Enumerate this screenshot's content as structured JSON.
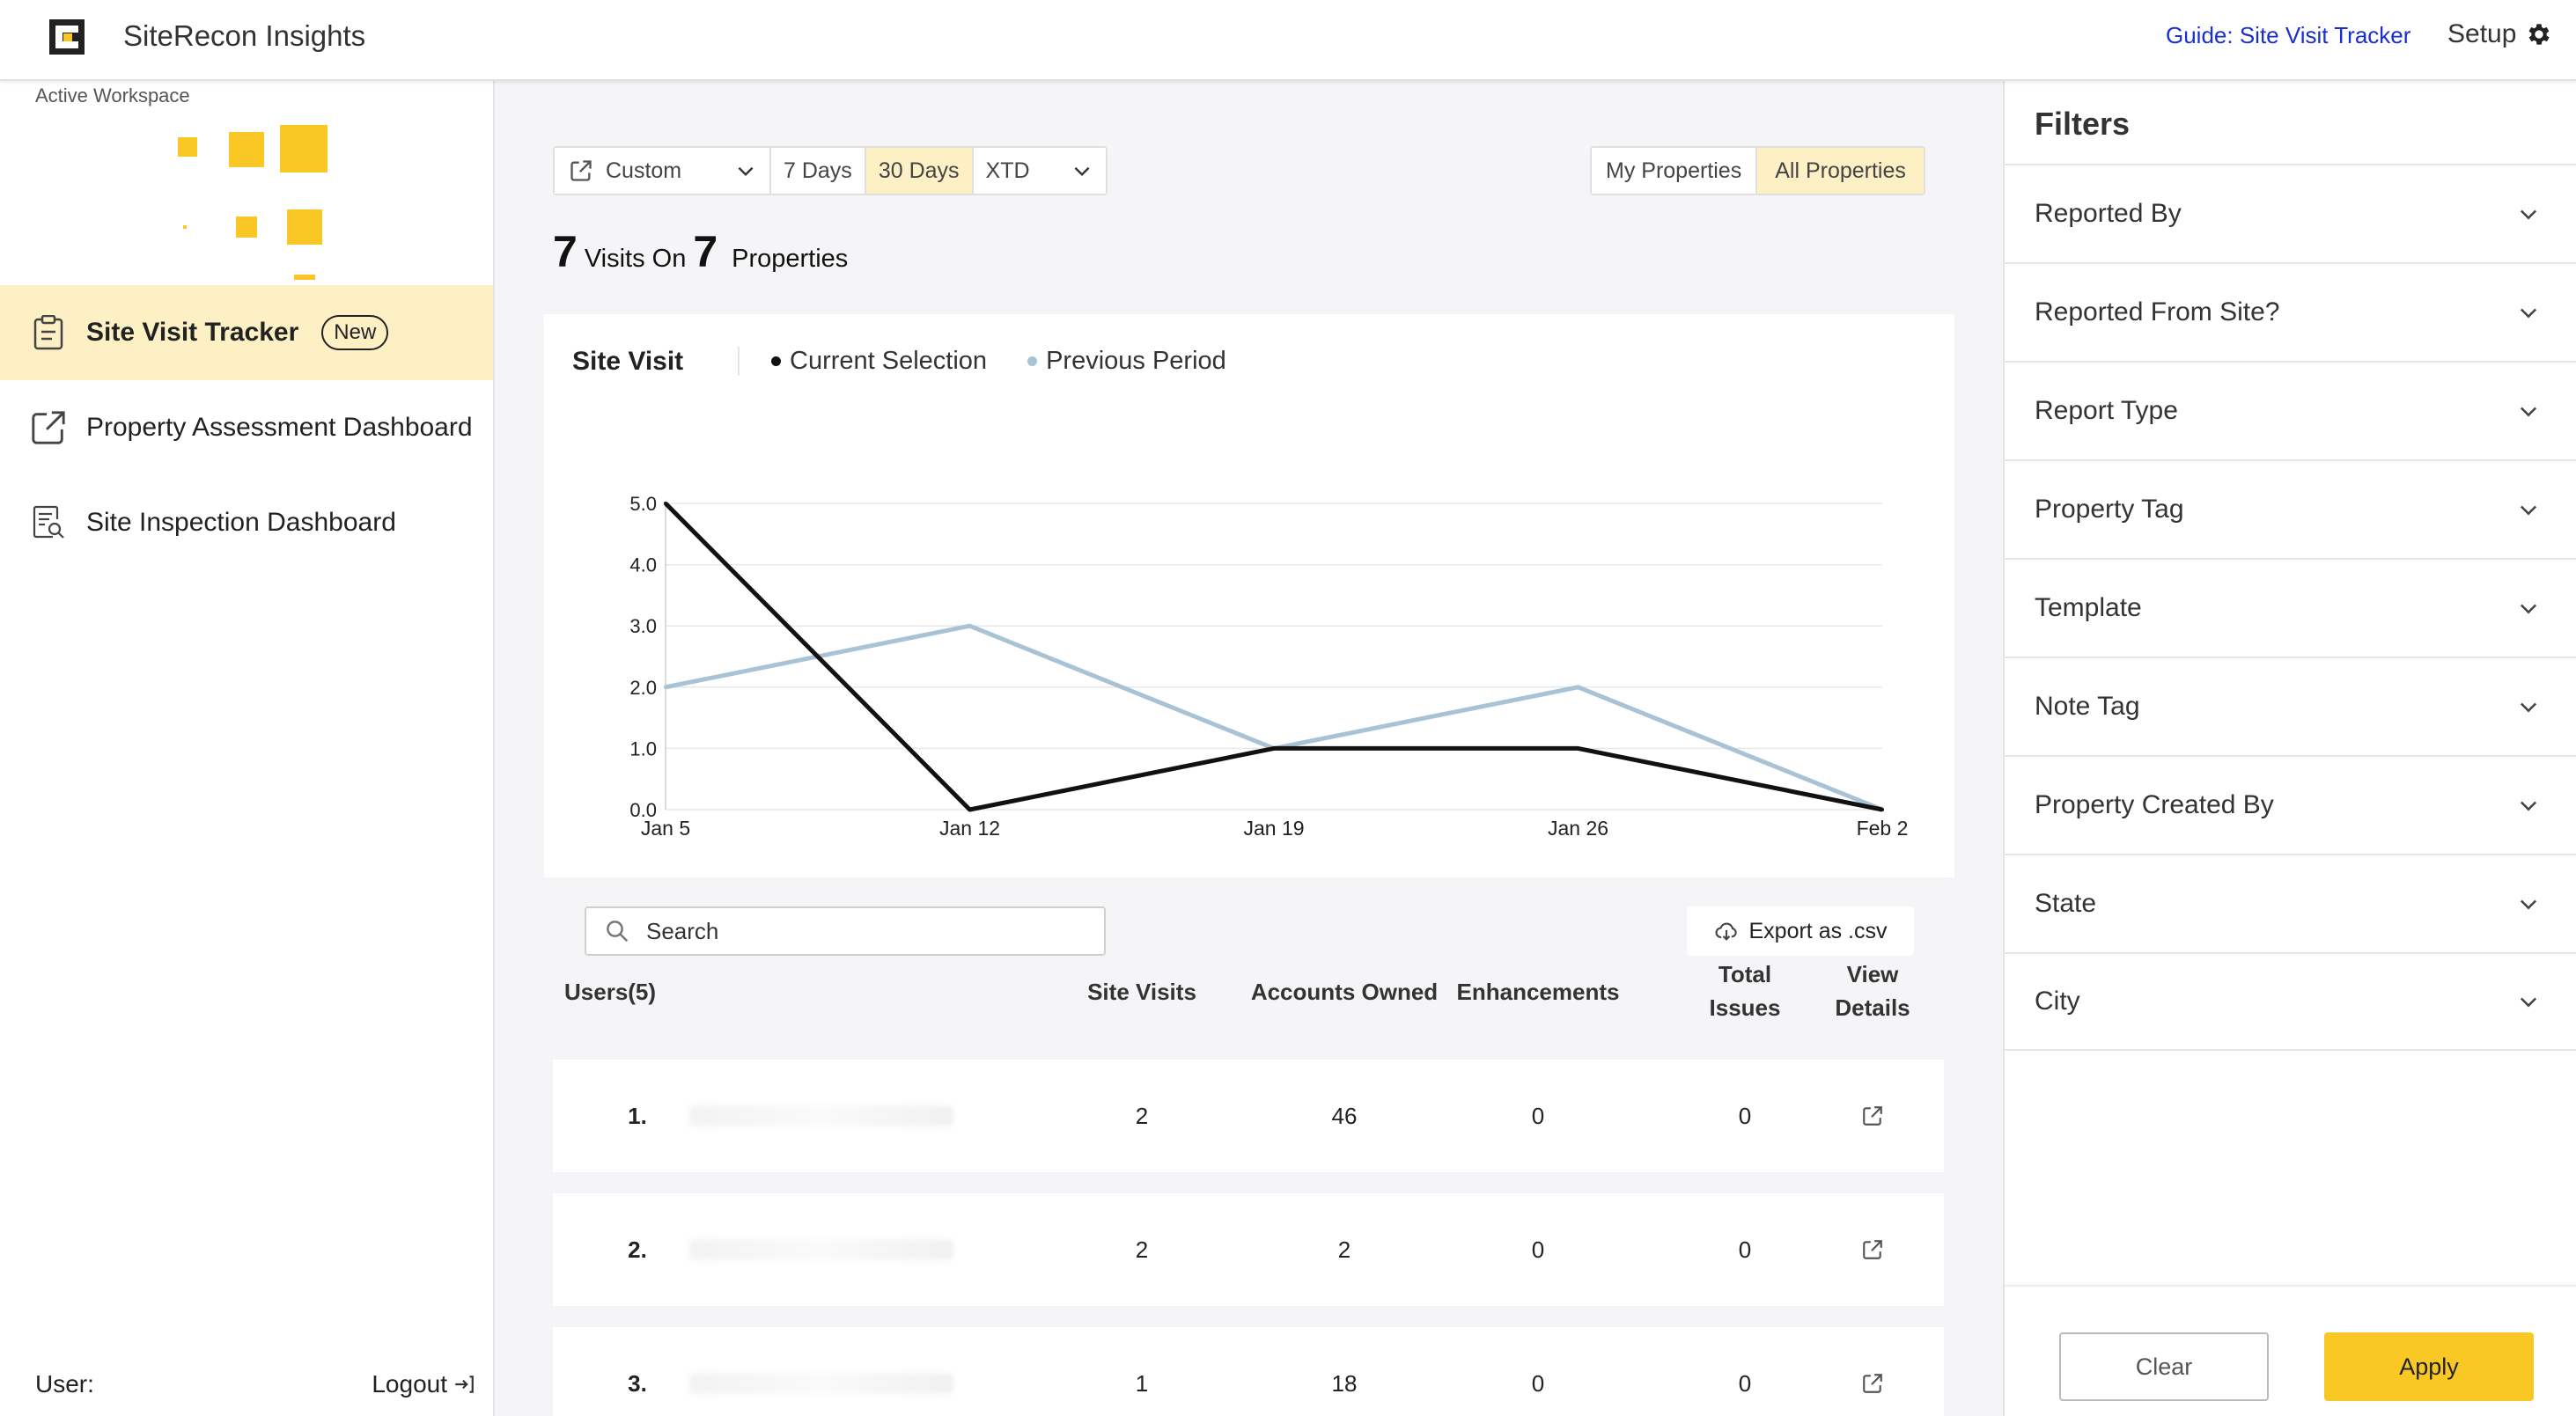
{
  "header": {
    "app_title": "SiteRecon Insights",
    "guide_link": "Guide: Site Visit Tracker",
    "setup_label": "Setup"
  },
  "sidebar": {
    "workspace_label": "Active Workspace",
    "items": [
      {
        "label": "Site Visit Tracker",
        "badge": "New",
        "active": true,
        "icon": "clipboard-icon"
      },
      {
        "label": "Property Assessment Dashboard",
        "icon": "external-link-icon"
      },
      {
        "label": "Site Inspection Dashboard",
        "icon": "report-search-icon"
      }
    ],
    "user_label": "User:",
    "logout_label": "Logout"
  },
  "toolbar": {
    "custom_label": "Custom",
    "range_7": "7 Days",
    "range_30": "30 Days",
    "range_xtd": "XTD",
    "active_range": "30 Days",
    "my_properties": "My Properties",
    "all_properties": "All Properties",
    "active_scope": "All Properties"
  },
  "summary": {
    "visits": "7",
    "visits_label": "Visits On",
    "properties": "7",
    "properties_label": "Properties"
  },
  "chart": {
    "title": "Site Visit",
    "legend_current": "Current Selection",
    "legend_previous": "Previous Period",
    "current_color": "#111111",
    "previous_color": "#a9c3d6"
  },
  "chart_data": {
    "type": "line",
    "title": "Site Visit",
    "x": [
      "Jan 5",
      "Jan 12",
      "Jan 19",
      "Jan 26",
      "Feb 2"
    ],
    "yticks": [
      "0.0",
      "1.0",
      "2.0",
      "3.0",
      "4.0",
      "5.0"
    ],
    "ylim": [
      0,
      5
    ],
    "grid": true,
    "legend_position": "top",
    "series": [
      {
        "name": "Current Selection",
        "values": [
          5,
          0,
          1,
          1,
          0
        ]
      },
      {
        "name": "Previous Period",
        "values": [
          2,
          3,
          1,
          2,
          0
        ]
      }
    ]
  },
  "table": {
    "search_placeholder": "Search",
    "export_label": "Export as .csv",
    "headers": {
      "users": "Users(5)",
      "site_visits": "Site Visits",
      "accounts_owned": "Accounts Owned",
      "enhancements": "Enhancements",
      "total_issues_1": "Total",
      "total_issues_2": "Issues",
      "view_details_1": "View",
      "view_details_2": "Details"
    },
    "rows": [
      {
        "index": "1.",
        "site_visits": "2",
        "accounts_owned": "46",
        "enhancements": "0",
        "total_issues": "0"
      },
      {
        "index": "2.",
        "site_visits": "2",
        "accounts_owned": "2",
        "enhancements": "0",
        "total_issues": "0"
      },
      {
        "index": "3.",
        "site_visits": "1",
        "accounts_owned": "18",
        "enhancements": "0",
        "total_issues": "0"
      }
    ]
  },
  "filters": {
    "title": "Filters",
    "items": [
      "Reported By",
      "Reported From Site?",
      "Report Type",
      "Property Tag",
      "Template",
      "Note Tag",
      "Property Created By",
      "State",
      "City"
    ],
    "clear_label": "Clear",
    "apply_label": "Apply"
  },
  "colors": {
    "accent": "#f9c825",
    "active_bg": "#fdf0c4",
    "link": "#1a2fd0"
  }
}
